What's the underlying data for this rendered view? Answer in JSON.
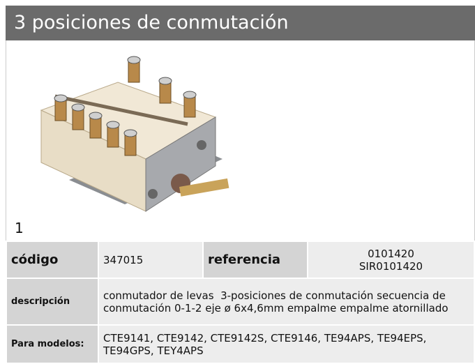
{
  "header": {
    "title": "3 posiciones de conmutación"
  },
  "image": {
    "label": "1"
  },
  "table": {
    "rows": [
      [
        "código",
        "347015",
        "referencia",
        [
          "0101420",
          "SIR0101420"
        ]
      ],
      [
        "descripción",
        "conmutador de levas  3-posiciones de conmutación secuencia de conmutación 0-1-2 eje ø 6x4,6mm empalme empalme atornillado"
      ],
      [
        "Para modelos:",
        "CTE9141, CTE9142, CTE9142S, CTE9146, TE94APS, TE94EPS, TE94GPS, TEY4APS"
      ]
    ]
  }
}
